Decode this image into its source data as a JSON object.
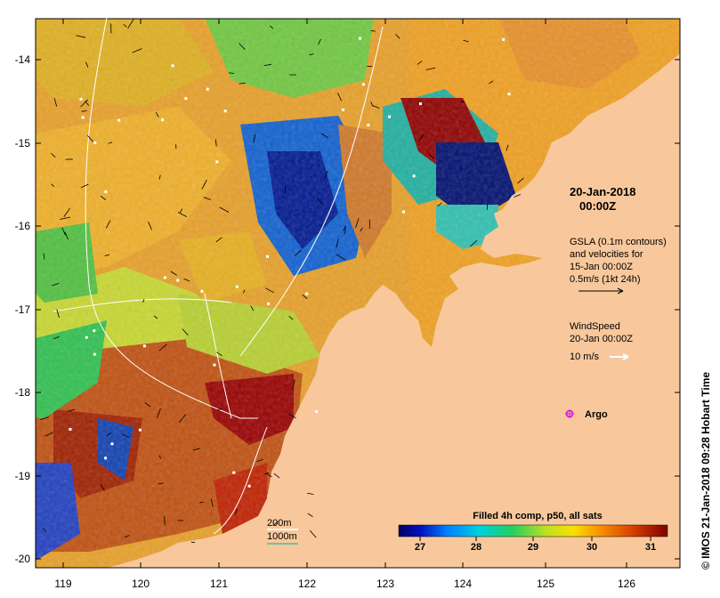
{
  "map": {
    "date_title": "20-Jan-2018",
    "time_title": "00:00Z",
    "gsla_lines": [
      "GSLA (0.1m contours)",
      "and velocities for",
      "15-Jan 00:00Z",
      "0.5m/s (1kt 24h)"
    ],
    "wind_lines": [
      "WindSpeed",
      "20-Jan 00:00Z"
    ],
    "wind_scale_label": "10 m/s",
    "argo_label": "Argo",
    "isobath_200": "200m",
    "isobath_1000": "1000m",
    "side_credit": "© IMOS 21-Jan-2018 09:28 Hobart Time",
    "colorbar_title": "Filled 4h comp, p50, all sats",
    "colorbar_ticks": [
      "27",
      "28",
      "29",
      "30",
      "31"
    ],
    "colorbar_range": [
      26.6,
      31.5
    ],
    "lat_ticks": [
      "-14",
      "-15",
      "-16",
      "-17",
      "-18",
      "-19",
      "-20"
    ],
    "lon_ticks": [
      "119",
      "120",
      "121",
      "122",
      "123",
      "124",
      "125",
      "126"
    ],
    "colors": {
      "land": "#f8c89c",
      "argo": "#e020e0",
      "isobath_200": "#ffffff",
      "isobath_1000": "#40c0a0"
    }
  }
}
